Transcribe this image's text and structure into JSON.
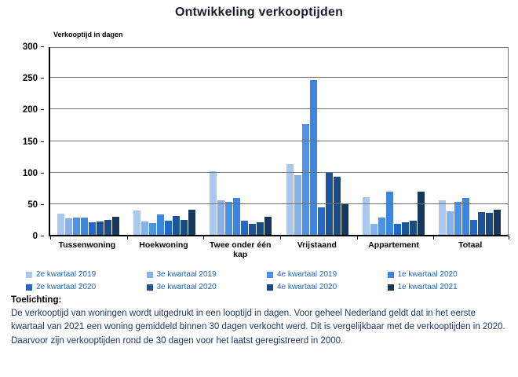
{
  "title": "Ontwikkeling verkooptijden",
  "chart_data": {
    "type": "bar",
    "title": "Ontwikkeling verkooptijden",
    "ylabel": "Verkooptijd in dagen",
    "xlabel": "",
    "ylim": [
      0,
      300
    ],
    "ytick_step": 50,
    "grid": true,
    "legend_position": "bottom",
    "categories": [
      "Tussenwoning",
      "Hoekwoning",
      "Twee onder één kap",
      "Vrijstaand",
      "Appartement",
      "Totaal"
    ],
    "series": [
      {
        "name": "2e kwartaal 2019",
        "color": "#a9c9f0",
        "values": [
          34,
          39,
          101,
          112,
          60,
          55
        ]
      },
      {
        "name": "3e kwartaal 2019",
        "color": "#85b2ea",
        "values": [
          26,
          21,
          55,
          95,
          18,
          37
        ]
      },
      {
        "name": "4e kwartaal 2019",
        "color": "#4d92e3",
        "values": [
          28,
          19,
          52,
          176,
          27,
          52
        ]
      },
      {
        "name": "1e kwartaal 2020",
        "color": "#3c86df",
        "values": [
          27,
          33,
          59,
          245,
          69,
          58
        ]
      },
      {
        "name": "2e kwartaal 2020",
        "color": "#2268cb",
        "values": [
          20,
          23,
          22,
          44,
          17,
          24
        ]
      },
      {
        "name": "3e kwartaal 2020",
        "color": "#1d5499",
        "values": [
          21,
          30,
          18,
          100,
          20,
          36
        ]
      },
      {
        "name": "4e kwartaal 2020",
        "color": "#1a4b85",
        "values": [
          24,
          24,
          20,
          92,
          23,
          35
        ]
      },
      {
        "name": "1e kwartaal 2021",
        "color": "#16385f",
        "values": [
          29,
          40,
          29,
          50,
          69,
          40
        ]
      }
    ]
  },
  "footer": {
    "heading": "Toelichting:",
    "body": "De verkooptijd van woningen wordt uitgedrukt in een looptijd in dagen. Voor geheel Nederland geldt dat in het eerste kwartaal van 2021 een woning gemiddeld binnen 30 dagen verkocht werd. Dit is vergelijkbaar met de verkooptijden in 2020. Daarvoor zijn verkooptijden rond de 30 dagen voor het laatst geregistreerd in 2000."
  }
}
